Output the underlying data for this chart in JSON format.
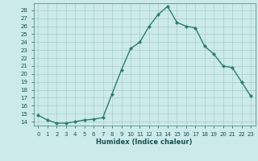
{
  "x": [
    0,
    1,
    2,
    3,
    4,
    5,
    6,
    7,
    8,
    9,
    10,
    11,
    12,
    13,
    14,
    15,
    16,
    17,
    18,
    19,
    20,
    21,
    22,
    23
  ],
  "y": [
    14.8,
    14.2,
    13.8,
    13.8,
    14.0,
    14.2,
    14.3,
    14.5,
    17.5,
    20.5,
    23.2,
    24.0,
    26.0,
    27.5,
    28.5,
    26.5,
    26.0,
    25.8,
    23.5,
    22.5,
    21.0,
    20.8,
    19.0,
    17.2
  ],
  "line_color": "#2e7d6e",
  "bg_color": "#cceaea",
  "grid_color": "#aacccc",
  "xlabel": "Humidex (Indice chaleur)",
  "ylabel_ticks": [
    14,
    15,
    16,
    17,
    18,
    19,
    20,
    21,
    22,
    23,
    24,
    25,
    26,
    27,
    28
  ],
  "xlim": [
    -0.5,
    23.5
  ],
  "ylim": [
    13.5,
    28.9
  ],
  "marker": "D",
  "marker_size": 2.0,
  "line_width": 1.0,
  "tick_fontsize": 5.0,
  "xlabel_fontsize": 6.0
}
